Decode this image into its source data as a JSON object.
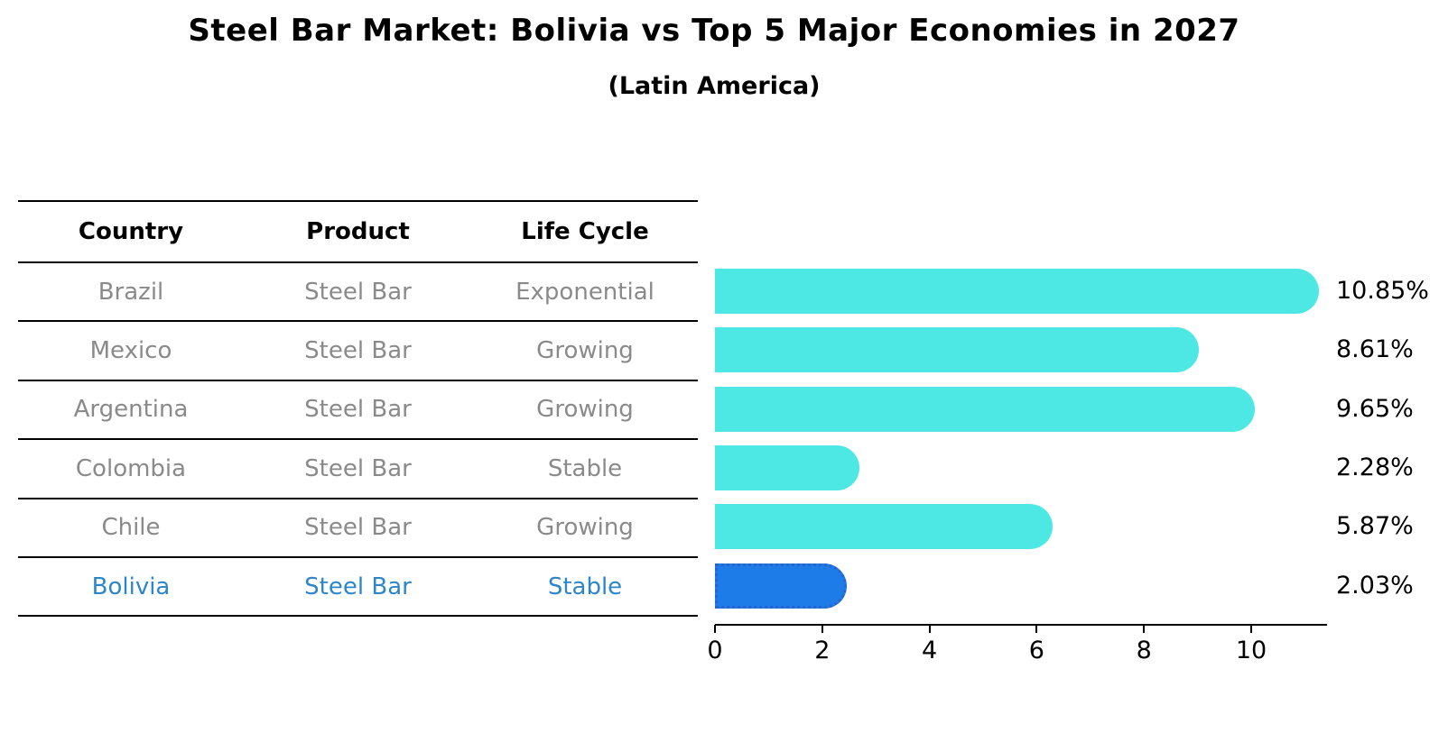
{
  "header": {
    "title": "Steel Bar Market: Bolivia vs Top 5 Major Economies in 2027",
    "subtitle": "(Latin America)"
  },
  "table": {
    "columns": [
      "Country",
      "Product",
      "Life Cycle"
    ],
    "rows": [
      {
        "country": "Brazil",
        "product": "Steel Bar",
        "life_cycle": "Exponential",
        "highlight": false
      },
      {
        "country": "Mexico",
        "product": "Steel Bar",
        "life_cycle": "Growing",
        "highlight": false
      },
      {
        "country": "Argentina",
        "product": "Steel Bar",
        "life_cycle": "Growing",
        "highlight": false
      },
      {
        "country": "Colombia",
        "product": "Steel Bar",
        "life_cycle": "Stable",
        "highlight": false
      },
      {
        "country": "Chile",
        "product": "Steel Bar",
        "life_cycle": "Growing",
        "highlight": false
      },
      {
        "country": "Bolivia",
        "product": "Steel Bar",
        "life_cycle": "Stable",
        "highlight": true
      }
    ]
  },
  "chart_data": {
    "type": "bar",
    "orientation": "horizontal",
    "title": "Steel Bar Market: Bolivia vs Top 5 Major Economies in 2027",
    "subtitle": "(Latin America)",
    "categories": [
      "Brazil",
      "Mexico",
      "Argentina",
      "Colombia",
      "Chile",
      "Bolivia"
    ],
    "values": [
      10.85,
      8.61,
      9.65,
      2.28,
      5.87,
      2.03
    ],
    "value_labels": [
      "10.85%",
      "8.61%",
      "9.65%",
      "2.28%",
      "5.87%",
      "2.03%"
    ],
    "highlight_index": 5,
    "xlabel": "",
    "ylabel": "",
    "xticks": [
      0,
      2,
      4,
      6,
      8,
      10
    ],
    "xlim": [
      0,
      11.4
    ],
    "grid": false,
    "legend": false,
    "bar_color": "#4DE8E4",
    "highlight_bar_color": "#1E7CE8",
    "highlight_bar_border_color": "#2A62CE"
  },
  "colors": {
    "background": "#FFFFFF",
    "text_primary": "#000000",
    "table_text": "#8A8A8A",
    "highlight_text": "#2E86C8",
    "axis": "#000000"
  }
}
